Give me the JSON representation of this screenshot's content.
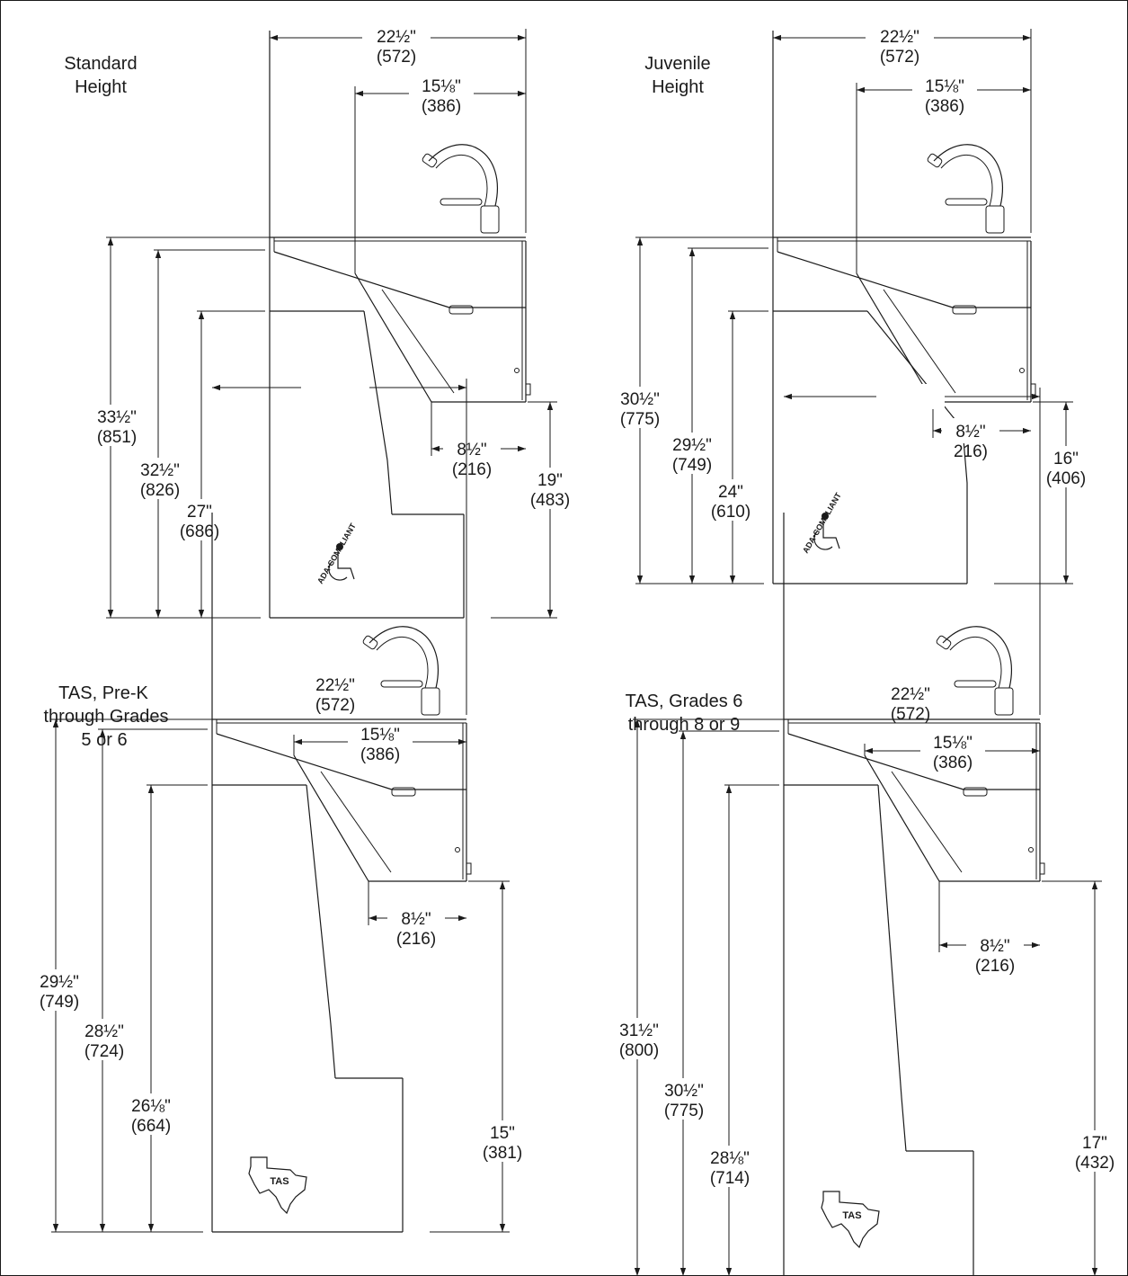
{
  "panels": [
    {
      "title_lines": [
        "Standard",
        "Height"
      ],
      "width_overall": {
        "in": "22½\"",
        "mm": "(572)"
      },
      "width_spout": {
        "in": "15⅛\"",
        "mm": "(386)"
      },
      "knee_depth": {
        "in": "8½\"",
        "mm": "(216)"
      },
      "height_rim": {
        "in": "33½\"",
        "mm": "(851)"
      },
      "height_spout": {
        "in": "32½\"",
        "mm": "(826)"
      },
      "height_knee": {
        "in": "27\"",
        "mm": "(686)"
      },
      "height_bottom": {
        "in": "19\"",
        "mm": "(483)"
      },
      "badge": "ada",
      "badge_text": "ADA•COMPLIANT"
    },
    {
      "title_lines": [
        "Juvenile",
        "Height"
      ],
      "width_overall": {
        "in": "22½\"",
        "mm": "(572)"
      },
      "width_spout": {
        "in": "15⅛\"",
        "mm": "(386)"
      },
      "knee_depth": {
        "in": "8½\"",
        "mm": "216)"
      },
      "height_rim": {
        "in": "30½\"",
        "mm": "(775)"
      },
      "height_spout": {
        "in": "29½\"",
        "mm": "(749)"
      },
      "height_knee": {
        "in": "24\"",
        "mm": "(610)"
      },
      "height_bottom": {
        "in": "16\"",
        "mm": "(406)"
      },
      "badge": "ada",
      "badge_text": "ADA•COMPLIANT"
    },
    {
      "title_lines": [
        "TAS, Pre-K",
        "through Grades",
        "5 or 6"
      ],
      "width_overall": {
        "in": "22½\"",
        "mm": "(572)"
      },
      "width_spout": {
        "in": "15⅛\"",
        "mm": "(386)"
      },
      "knee_depth": {
        "in": "8½\"",
        "mm": "(216)"
      },
      "height_rim": {
        "in": "29½\"",
        "mm": "(749)"
      },
      "height_spout": {
        "in": "28½\"",
        "mm": "(724)"
      },
      "height_knee": {
        "in": "26⅛\"",
        "mm": "(664)"
      },
      "height_bottom": {
        "in": "15\"",
        "mm": "(381)"
      },
      "badge": "tas",
      "badge_text": "TAS"
    },
    {
      "title_lines": [
        "TAS, Grades 6",
        "through 8 or 9"
      ],
      "width_overall": {
        "in": "22½\"",
        "mm": "(572)"
      },
      "width_spout": {
        "in": "15⅛\"",
        "mm": "(386)"
      },
      "knee_depth": {
        "in": "8½\"",
        "mm": "(216)"
      },
      "height_rim": {
        "in": "31½\"",
        "mm": "(800)"
      },
      "height_spout": {
        "in": "30½\"",
        "mm": "(775)"
      },
      "height_knee": {
        "in": "28⅛\"",
        "mm": "(714)"
      },
      "height_bottom": {
        "in": "17\"",
        "mm": "(432)"
      },
      "badge": "tas",
      "badge_text": "TAS"
    }
  ]
}
